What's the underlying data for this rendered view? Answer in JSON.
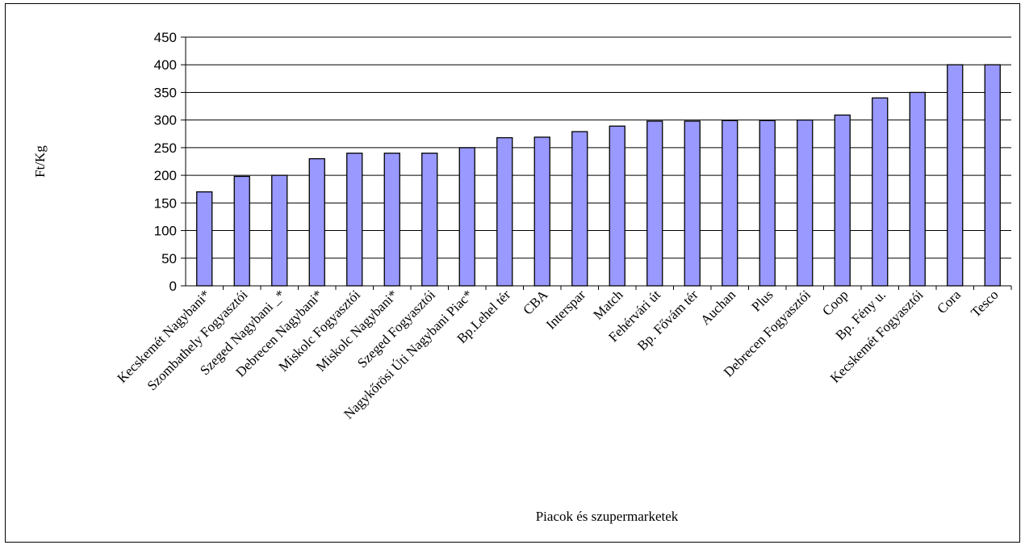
{
  "chart_data": {
    "type": "bar",
    "title": "",
    "xlabel": "Piacok és szupermarketek",
    "ylabel": "Ft/Kg",
    "ylim": [
      0,
      450
    ],
    "yticks": [
      0,
      50,
      100,
      150,
      200,
      250,
      300,
      350,
      400,
      450
    ],
    "grid": true,
    "legend": "none",
    "bar_color": "#9999ff",
    "categories": [
      "Kecskemét Nagybani*",
      "Szombathely Fogyasztói",
      "Szeged Nagybani _*",
      "Debrecen Nagybani*",
      "Miskolc Fogyasztói",
      "Miskolc  Nagybani*",
      "Szeged Fogyasztói",
      "Nagykőrösi Úti Nagybani Piac*",
      "Bp.Lehel tér",
      "CBA",
      "Interspar",
      "Match",
      "Fehérvári út",
      "Bp. Fővám tér",
      "Auchan",
      "Plus",
      "Debrecen  Fogyasztói",
      "Coop",
      "Bp. Fény u.",
      "Kecskemét Fogyasztói",
      "Cora",
      "Tesco"
    ],
    "values": [
      170,
      198,
      200,
      230,
      240,
      240,
      240,
      250,
      268,
      269,
      279,
      289,
      298,
      298,
      299,
      299,
      300,
      309,
      340,
      350,
      400,
      400
    ]
  }
}
